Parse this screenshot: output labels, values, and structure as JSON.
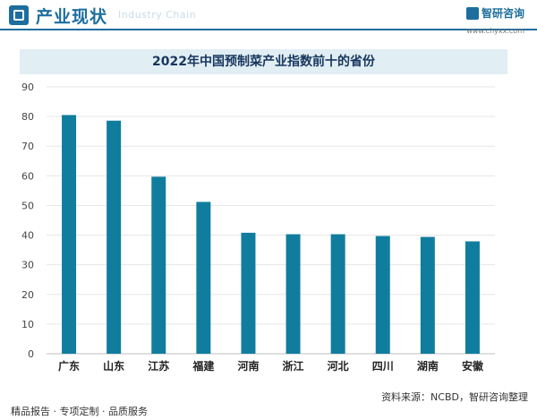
{
  "header": {
    "title": "产业现状",
    "subtitle": "Industry Chain",
    "brand_name": "智研咨询",
    "brand_url": "www.chyxx.com"
  },
  "footer": {
    "slogan": "精品报告 · 专项定制 · 品质服务",
    "source": "资料来源：NCBD，智研咨询整理"
  },
  "colors": {
    "bar": "#117d9e",
    "accent": "#1d6e9e",
    "title_bg": "#e1eef3"
  },
  "chart_data": {
    "type": "bar",
    "title": "2022年中国预制菜产业指数前十的省份",
    "categories": [
      "广东",
      "山东",
      "江苏",
      "福建",
      "河南",
      "浙江",
      "河北",
      "四川",
      "湖南",
      "安徽"
    ],
    "values": [
      80.5,
      78.6,
      59.7,
      51.2,
      40.8,
      40.3,
      40.3,
      39.7,
      39.4,
      37.9
    ],
    "ylim": [
      0,
      90
    ],
    "yticks": [
      0,
      10,
      20,
      30,
      40,
      50,
      60,
      70,
      80,
      90
    ],
    "grid": true,
    "xlabel": "",
    "ylabel": ""
  }
}
